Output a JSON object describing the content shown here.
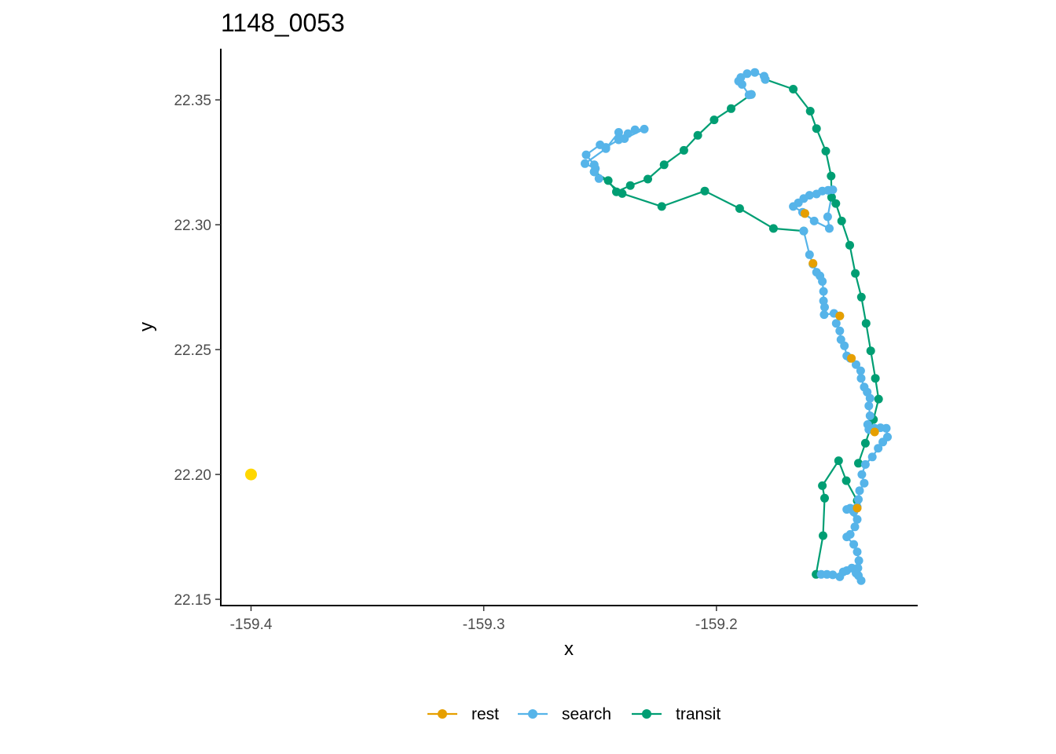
{
  "chart_data": {
    "type": "scatter",
    "title": "1148_0053",
    "xlabel": "x",
    "ylabel": "y",
    "xlim": [
      -159.413,
      -159.1135
    ],
    "ylim": [
      22.1475,
      22.3705
    ],
    "x_ticks": [
      {
        "value": -159.4,
        "label": "-159.4"
      },
      {
        "value": -159.3,
        "label": "-159.3"
      },
      {
        "value": -159.2,
        "label": "-159.2"
      }
    ],
    "y_ticks": [
      {
        "value": 22.15,
        "label": "22.15"
      },
      {
        "value": 22.2,
        "label": "22.20"
      },
      {
        "value": 22.25,
        "label": "22.25"
      },
      {
        "value": 22.3,
        "label": "22.30"
      },
      {
        "value": 22.35,
        "label": "22.35"
      }
    ],
    "grid": false,
    "legend_position": "bottom",
    "legend": [
      {
        "name": "rest",
        "color": "#E69F00"
      },
      {
        "name": "search",
        "color": "#56B4E9"
      },
      {
        "name": "transit",
        "color": "#009E73"
      }
    ],
    "extra_points": [
      {
        "x": -159.4,
        "y": 22.2,
        "color": "#FFD700"
      }
    ],
    "series": [
      {
        "name": "transit",
        "color": "#009E73",
        "points": [
          [
            -159.1395,
            22.1895
          ],
          [
            -159.1442,
            22.1975
          ],
          [
            -159.1475,
            22.2055
          ],
          [
            -159.1545,
            22.1955
          ],
          [
            -159.1535,
            22.1905
          ],
          [
            -159.1542,
            22.1755
          ],
          [
            -159.1572,
            22.16
          ]
        ]
      },
      {
        "name": "transit",
        "color": "#009E73",
        "points": [
          [
            -159.139,
            22.2045
          ],
          [
            -159.136,
            22.2125
          ],
          [
            -159.1325,
            22.222
          ],
          [
            -159.1303,
            22.2302
          ],
          [
            -159.1317,
            22.2385
          ],
          [
            -159.1337,
            22.2495
          ],
          [
            -159.1357,
            22.2605
          ],
          [
            -159.1377,
            22.271
          ],
          [
            -159.1403,
            22.2805
          ],
          [
            -159.1427,
            22.2918
          ],
          [
            -159.1462,
            22.3015
          ],
          [
            -159.1487,
            22.3085
          ],
          [
            -159.1505,
            22.311
          ],
          [
            -159.1507,
            22.3195
          ],
          [
            -159.153,
            22.3295
          ],
          [
            -159.157,
            22.3385
          ],
          [
            -159.1597,
            22.3455
          ],
          [
            -159.167,
            22.3543
          ],
          [
            -159.179,
            22.3582
          ]
        ]
      },
      {
        "name": "transit",
        "color": "#009E73",
        "points": [
          [
            -159.185,
            22.3522
          ],
          [
            -159.1937,
            22.3465
          ],
          [
            -159.201,
            22.342
          ],
          [
            -159.208,
            22.3358
          ],
          [
            -159.214,
            22.3298
          ],
          [
            -159.2225,
            22.324
          ],
          [
            -159.2295,
            22.3183
          ],
          [
            -159.237,
            22.3157
          ],
          [
            -159.243,
            22.3132
          ],
          [
            -159.2465,
            22.3177
          ],
          [
            -159.2525,
            22.3212
          ],
          [
            -159.2405,
            22.3125
          ],
          [
            -159.2235,
            22.3073
          ],
          [
            -159.205,
            22.3135
          ],
          [
            -159.19,
            22.3065
          ],
          [
            -159.1755,
            22.2985
          ],
          [
            -159.1625,
            22.2975
          ]
        ]
      },
      {
        "name": "search",
        "color": "#56B4E9",
        "points": [
          [
            -159.162,
            22.3045
          ],
          [
            -159.167,
            22.3073
          ],
          [
            -159.1648,
            22.3088
          ],
          [
            -159.1625,
            22.3105
          ],
          [
            -159.16,
            22.3118
          ],
          [
            -159.157,
            22.3123
          ],
          [
            -159.1545,
            22.3135
          ],
          [
            -159.152,
            22.3138
          ],
          [
            -159.15,
            22.314
          ],
          [
            -159.1522,
            22.3032
          ],
          [
            -159.1515,
            22.2985
          ],
          [
            -159.158,
            22.3015
          ],
          [
            -159.163,
            22.305
          ]
        ]
      },
      {
        "name": "search",
        "color": "#56B4E9",
        "points": [
          [
            -159.1625,
            22.2975
          ],
          [
            -159.16,
            22.288
          ],
          [
            -159.1585,
            22.2842
          ],
          [
            -159.157,
            22.281
          ],
          [
            -159.1555,
            22.2795
          ],
          [
            -159.1545,
            22.2773
          ],
          [
            -159.154,
            22.2733
          ],
          [
            -159.154,
            22.2695
          ],
          [
            -159.1535,
            22.267
          ],
          [
            -159.1537,
            22.264
          ],
          [
            -159.1495,
            22.2645
          ],
          [
            -159.147,
            22.2635
          ],
          [
            -159.1485,
            22.2605
          ],
          [
            -159.147,
            22.2575
          ],
          [
            -159.1465,
            22.254
          ],
          [
            -159.145,
            22.2515
          ],
          [
            -159.144,
            22.2475
          ],
          [
            -159.1425,
            22.2465
          ],
          [
            -159.14,
            22.244
          ],
          [
            -159.138,
            22.2415
          ],
          [
            -159.1378,
            22.2385
          ],
          [
            -159.1365,
            22.235
          ],
          [
            -159.1352,
            22.233
          ],
          [
            -159.134,
            22.2305
          ],
          [
            -159.1345,
            22.2275
          ],
          [
            -159.134,
            22.2235
          ],
          [
            -159.135,
            22.22
          ],
          [
            -159.1345,
            22.218
          ],
          [
            -159.132,
            22.2185
          ],
          [
            -159.1295,
            22.2187
          ],
          [
            -159.127,
            22.2185
          ],
          [
            -159.1265,
            22.215
          ],
          [
            -159.1285,
            22.213
          ],
          [
            -159.1305,
            22.2105
          ],
          [
            -159.133,
            22.207
          ],
          [
            -159.136,
            22.204
          ],
          [
            -159.1375,
            22.2
          ],
          [
            -159.1365,
            22.1965
          ],
          [
            -159.1385,
            22.1935
          ],
          [
            -159.139,
            22.19
          ],
          [
            -159.1395,
            22.187
          ],
          [
            -159.141,
            22.185
          ],
          [
            -159.1425,
            22.1865
          ],
          [
            -159.144,
            22.186
          ],
          [
            -159.1395,
            22.182
          ],
          [
            -159.1405,
            22.179
          ],
          [
            -159.1425,
            22.176
          ],
          [
            -159.144,
            22.175
          ],
          [
            -159.141,
            22.172
          ],
          [
            -159.1395,
            22.169
          ],
          [
            -159.1388,
            22.1655
          ],
          [
            -159.1392,
            22.1625
          ],
          [
            -159.139,
            22.1595
          ],
          [
            -159.1378,
            22.1575
          ],
          [
            -159.14,
            22.1605
          ],
          [
            -159.1418,
            22.1625
          ],
          [
            -159.144,
            22.1615
          ],
          [
            -159.1455,
            22.161
          ],
          [
            -159.147,
            22.159
          ],
          [
            -159.15,
            22.1598
          ],
          [
            -159.1525,
            22.16
          ],
          [
            -159.155,
            22.16
          ]
        ]
      },
      {
        "name": "search",
        "color": "#56B4E9",
        "points": [
          [
            -159.179,
            22.3582
          ],
          [
            -159.1795,
            22.3595
          ],
          [
            -159.1835,
            22.361
          ],
          [
            -159.1868,
            22.3605
          ],
          [
            -159.1895,
            22.359
          ],
          [
            -159.1905,
            22.3575
          ],
          [
            -159.189,
            22.3562
          ],
          [
            -159.186,
            22.352
          ],
          [
            -159.185,
            22.3522
          ]
        ]
      },
      {
        "name": "search",
        "color": "#56B4E9",
        "points": [
          [
            -159.2525,
            22.3212
          ],
          [
            -159.2525,
            22.324
          ],
          [
            -159.256,
            22.328
          ],
          [
            -159.25,
            22.332
          ],
          [
            -159.2475,
            22.331
          ],
          [
            -159.242,
            22.334
          ],
          [
            -159.238,
            22.3365
          ],
          [
            -159.235,
            22.338
          ],
          [
            -159.231,
            22.3383
          ],
          [
            -159.2395,
            22.3345
          ],
          [
            -159.242,
            22.337
          ],
          [
            -159.2475,
            22.3305
          ],
          [
            -159.2565,
            22.3245
          ],
          [
            -159.252,
            22.3225
          ],
          [
            -159.2505,
            22.3185
          ],
          [
            -159.2525,
            22.3212
          ]
        ]
      },
      {
        "name": "rest",
        "color": "#E69F00",
        "points": [
          [
            -159.162,
            22.3045
          ],
          [
            -159.1585,
            22.2845
          ],
          [
            -159.147,
            22.2635
          ],
          [
            -159.142,
            22.2465
          ],
          [
            -159.132,
            22.217
          ],
          [
            -159.1395,
            22.1865
          ]
        ]
      }
    ]
  },
  "legend": {
    "rest_label": "rest",
    "search_label": "search",
    "transit_label": "transit"
  }
}
